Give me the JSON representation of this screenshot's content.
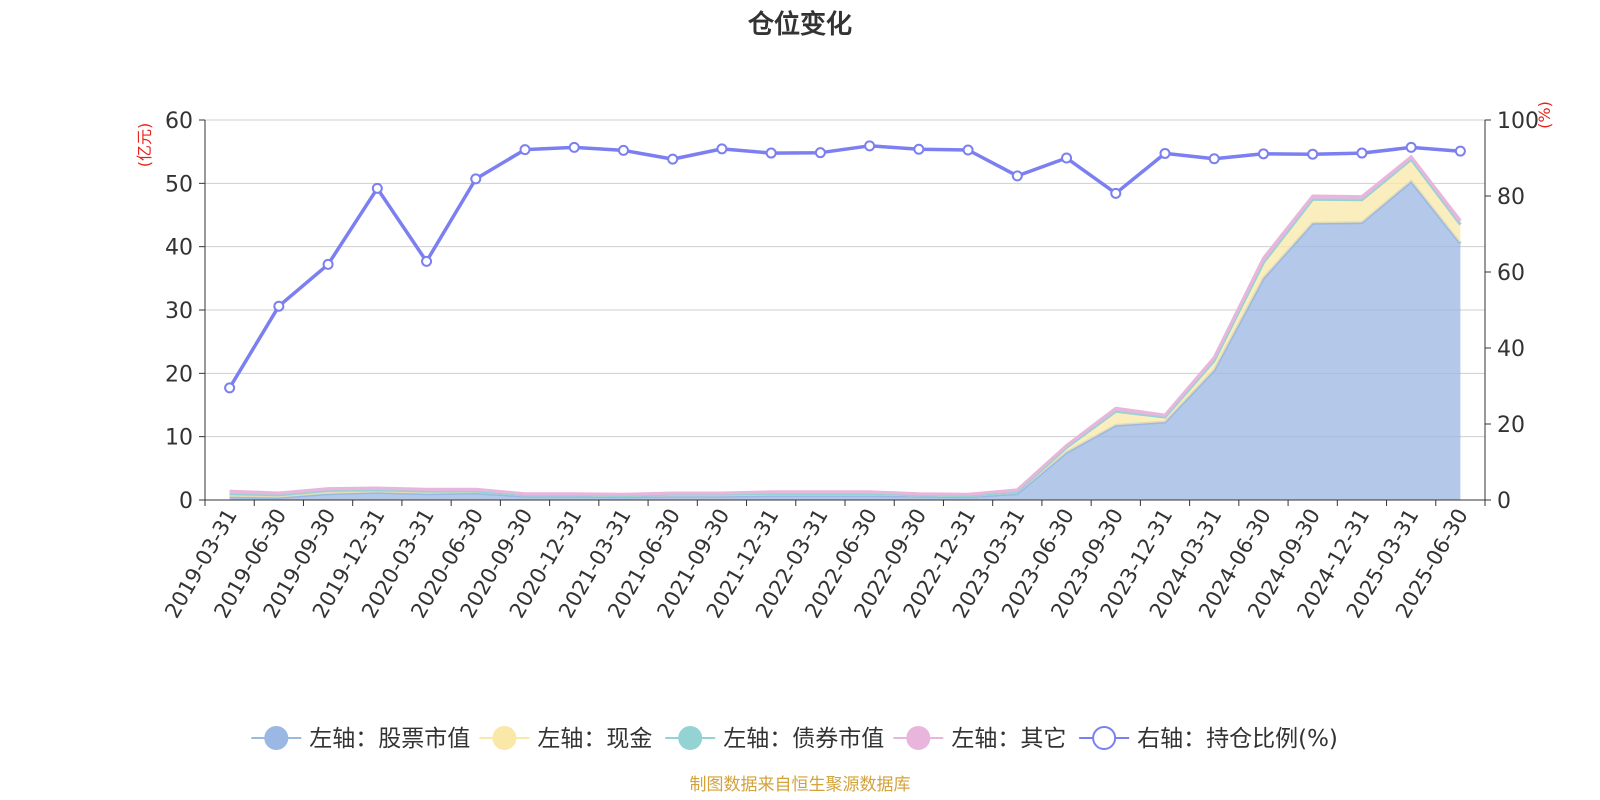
{
  "chart_data": {
    "type": "area",
    "title": "仓位变化",
    "left_axis_unit": "(亿元)",
    "right_axis_unit": "(%)",
    "left_axis": {
      "min": 0,
      "max": 60,
      "ticks": [
        0,
        10,
        20,
        30,
        40,
        50,
        60
      ]
    },
    "right_axis": {
      "min": 0,
      "max": 100,
      "ticks": [
        0,
        20,
        40,
        60,
        80,
        100
      ]
    },
    "grid": true,
    "legend_position": "bottom",
    "categories": [
      "2019-03-31",
      "2019-06-30",
      "2019-09-30",
      "2019-12-31",
      "2020-03-31",
      "2020-06-30",
      "2020-09-30",
      "2020-12-31",
      "2021-03-31",
      "2021-06-30",
      "2021-09-30",
      "2021-12-31",
      "2022-03-31",
      "2022-06-30",
      "2022-09-30",
      "2022-12-31",
      "2023-03-31",
      "2023-06-30",
      "2023-09-30",
      "2023-12-31",
      "2024-03-31",
      "2024-06-30",
      "2024-09-30",
      "2024-12-31",
      "2025-03-31",
      "2025-06-30"
    ],
    "series": [
      {
        "name": "左轴：股票市值",
        "axis": "left",
        "kind": "stacked-area",
        "color": "#9bb7e3",
        "values": [
          0.5,
          0.4,
          1.0,
          1.2,
          1.0,
          1.1,
          0.6,
          0.6,
          0.5,
          0.6,
          0.6,
          0.7,
          0.7,
          0.7,
          0.6,
          0.5,
          1.0,
          7.5,
          11.8,
          12.3,
          20.5,
          35.0,
          43.7,
          43.8,
          50.3,
          40.5
        ]
      },
      {
        "name": "左轴：现金",
        "axis": "left",
        "kind": "stacked-area",
        "color": "#fae8a8",
        "values": [
          0.5,
          0.4,
          0.5,
          0.4,
          0.4,
          0.3,
          0.2,
          0.2,
          0.2,
          0.3,
          0.3,
          0.3,
          0.3,
          0.3,
          0.2,
          0.2,
          0.3,
          0.8,
          2.2,
          0.8,
          1.5,
          2.5,
          3.8,
          3.6,
          3.5,
          3.0
        ]
      },
      {
        "name": "左轴：债券市值",
        "axis": "left",
        "kind": "stacked-area",
        "color": "#94d3d3",
        "values": [
          0,
          0,
          0,
          0,
          0,
          0,
          0,
          0,
          0,
          0,
          0,
          0,
          0,
          0,
          0,
          0,
          0,
          0,
          0,
          0,
          0,
          0,
          0,
          0,
          0,
          0
        ]
      },
      {
        "name": "左轴：其它",
        "axis": "left",
        "kind": "stacked-area",
        "color": "#e8b6dc",
        "values": [
          0.4,
          0.3,
          0.3,
          0.3,
          0.3,
          0.3,
          0.2,
          0.2,
          0.2,
          0.2,
          0.2,
          0.3,
          0.3,
          0.3,
          0.2,
          0.2,
          0.3,
          0.3,
          0.5,
          0.3,
          0.5,
          0.7,
          0.5,
          0.5,
          0.4,
          0.6
        ]
      },
      {
        "name": "右轴：持仓比例(%)",
        "axis": "right",
        "kind": "line",
        "color": "#7b7ff0",
        "values": [
          29.5,
          51.0,
          62.0,
          82.0,
          62.8,
          84.5,
          92.2,
          92.8,
          92.0,
          89.7,
          92.4,
          91.3,
          91.4,
          93.2,
          92.3,
          92.1,
          85.3,
          90.0,
          80.7,
          91.2,
          89.8,
          91.1,
          91.0,
          91.3,
          92.8,
          91.8
        ]
      }
    ]
  },
  "footer": {
    "source": "制图数据来自恒生聚源数据库"
  }
}
